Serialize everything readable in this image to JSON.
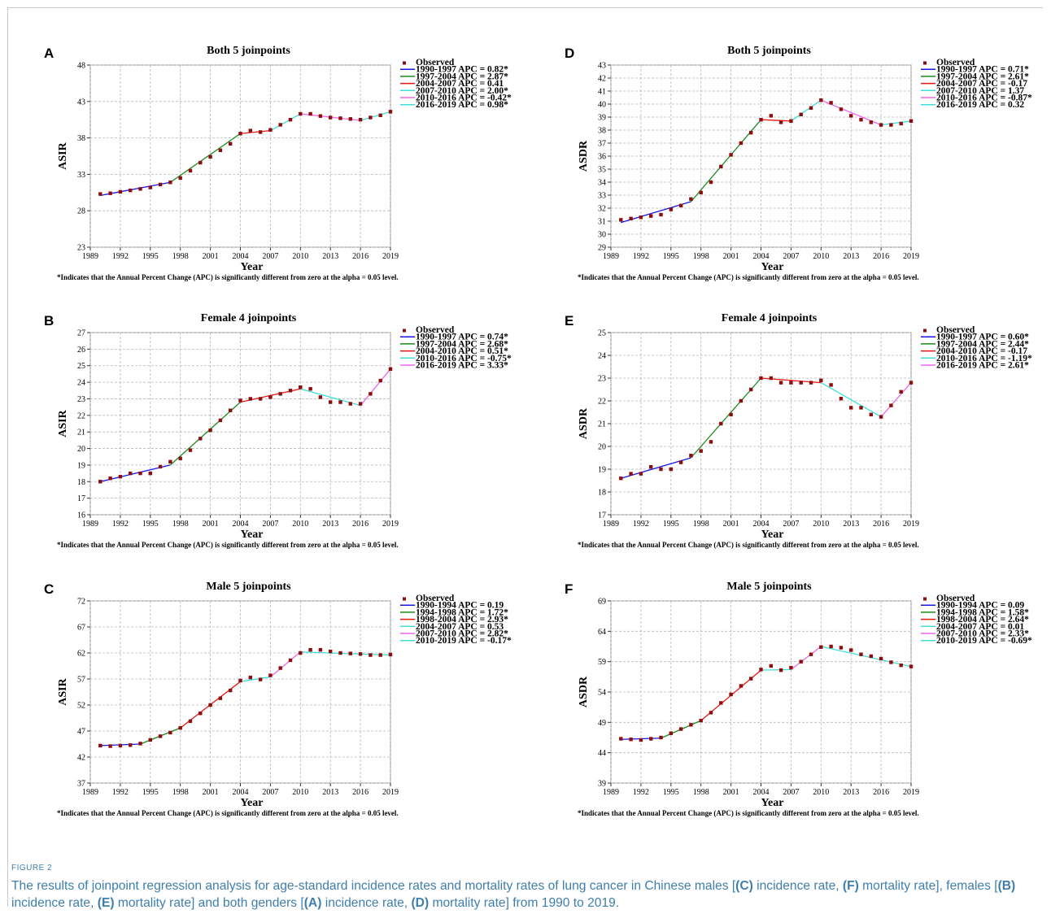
{
  "figure": {
    "label": "FIGURE 2",
    "caption_parts": [
      {
        "t": "The results of joinpoint regression analysis for age-standard incidence rates and mortality rates of lung cancer in Chinese males [",
        "b": false
      },
      {
        "t": "(C)",
        "b": true
      },
      {
        "t": " incidence rate, ",
        "b": false
      },
      {
        "t": "(F)",
        "b": true
      },
      {
        "t": " mortality rate], females [",
        "b": false
      },
      {
        "t": "(B)",
        "b": true
      },
      {
        "t": " incidence rate, ",
        "b": false
      },
      {
        "t": "(E)",
        "b": true
      },
      {
        "t": " mortality rate] and both genders [",
        "b": false
      },
      {
        "t": "(A)",
        "b": true
      },
      {
        "t": " incidence rate, ",
        "b": false
      },
      {
        "t": "(D)",
        "b": true
      },
      {
        "t": " mortality rate] from 1990 to 2019.",
        "b": false
      }
    ]
  },
  "colors": {
    "observed": "#8b0d0d",
    "blue": "#1515ee",
    "green": "#1e8a1e",
    "red": "#ee1515",
    "cyan": "#3fe0d8",
    "magenta": "#ee66ee",
    "grid": "#b8b8b8",
    "caption": "#3e7eae"
  },
  "chart_data": [
    {
      "panel": "A",
      "type": "scatter",
      "title": "Both 5 joinpoints",
      "xlabel": "Year",
      "ylabel": "ASIR",
      "xlim": [
        1989,
        2019
      ],
      "xticks": [
        1989,
        1992,
        1995,
        1998,
        2001,
        2004,
        2007,
        2010,
        2013,
        2016,
        2019
      ],
      "ylim": [
        23,
        48
      ],
      "yticks": [
        23,
        28,
        33,
        38,
        43,
        48
      ],
      "footnote": "*Indicates that the Annual Percent Change (APC) is significantly different from zero at the alpha = 0.05 level.",
      "legend_observed": "Observed",
      "observed": {
        "x": [
          1990,
          1991,
          1992,
          1993,
          1994,
          1995,
          1996,
          1997,
          1998,
          1999,
          2000,
          2001,
          2002,
          2003,
          2004,
          2005,
          2006,
          2007,
          2008,
          2009,
          2010,
          2011,
          2012,
          2013,
          2014,
          2015,
          2016,
          2017,
          2018,
          2019
        ],
        "y": [
          30.3,
          30.4,
          30.6,
          30.8,
          31.0,
          31.2,
          31.6,
          31.9,
          32.5,
          33.5,
          34.6,
          35.4,
          36.3,
          37.2,
          38.6,
          39.0,
          38.8,
          39.1,
          39.8,
          40.5,
          41.3,
          41.3,
          41.0,
          40.8,
          40.7,
          40.6,
          40.5,
          40.8,
          41.1,
          41.6
        ]
      },
      "segments": [
        {
          "label": "1990-1997 APC = 0.82*",
          "color": "blue",
          "x": [
            1990,
            1997
          ],
          "y": [
            30.1,
            31.9
          ]
        },
        {
          "label": "1997-2004 APC = 2.87*",
          "color": "green",
          "x": [
            1997,
            2004
          ],
          "y": [
            31.9,
            38.6
          ]
        },
        {
          "label": "2004-2007 APC = 0.41",
          "color": "red",
          "x": [
            2004,
            2007
          ],
          "y": [
            38.6,
            39.0
          ]
        },
        {
          "label": "2007-2010 APC = 2.00*",
          "color": "cyan",
          "x": [
            2007,
            2010
          ],
          "y": [
            39.0,
            41.3
          ]
        },
        {
          "label": "2010-2016 APC = -0.42*",
          "color": "magenta",
          "x": [
            2010,
            2016
          ],
          "y": [
            41.3,
            40.4
          ]
        },
        {
          "label": "2016-2019 APC = 0.98*",
          "color": "cyan",
          "x": [
            2016,
            2019
          ],
          "y": [
            40.4,
            41.6
          ]
        }
      ]
    },
    {
      "panel": "D",
      "type": "scatter",
      "title": "Both 5 joinpoints",
      "xlabel": "Year",
      "ylabel": "ASDR",
      "xlim": [
        1989,
        2019
      ],
      "xticks": [
        1989,
        1992,
        1995,
        1998,
        2001,
        2004,
        2007,
        2010,
        2013,
        2016,
        2019
      ],
      "ylim": [
        29,
        43
      ],
      "yticks": [
        29,
        30,
        31,
        32,
        33,
        34,
        35,
        36,
        37,
        38,
        39,
        40,
        41,
        42,
        43
      ],
      "footnote": "*Indicates that the Annual Percent Change (APC) is significantly different from zero at the alpha = 0.05 level.",
      "legend_observed": "Observed",
      "observed": {
        "x": [
          1990,
          1991,
          1992,
          1993,
          1994,
          1995,
          1996,
          1997,
          1998,
          1999,
          2000,
          2001,
          2002,
          2003,
          2004,
          2005,
          2006,
          2007,
          2008,
          2009,
          2010,
          2011,
          2012,
          2013,
          2014,
          2015,
          2016,
          2017,
          2018,
          2019
        ],
        "y": [
          31.1,
          31.2,
          31.3,
          31.4,
          31.5,
          31.9,
          32.2,
          32.7,
          33.2,
          34.0,
          35.2,
          36.1,
          37.0,
          37.8,
          38.8,
          39.1,
          38.6,
          38.7,
          39.2,
          39.7,
          40.3,
          40.1,
          39.6,
          39.1,
          38.8,
          38.6,
          38.4,
          38.4,
          38.5,
          38.7
        ]
      },
      "segments": [
        {
          "label": "1990-1997 APC = 0.71*",
          "color": "blue",
          "x": [
            1990,
            1997
          ],
          "y": [
            30.9,
            32.5
          ]
        },
        {
          "label": "1997-2004 APC = 2.61*",
          "color": "green",
          "x": [
            1997,
            2004
          ],
          "y": [
            32.5,
            38.8
          ]
        },
        {
          "label": "2004-2007 APC = -0.17",
          "color": "red",
          "x": [
            2004,
            2007
          ],
          "y": [
            38.8,
            38.7
          ]
        },
        {
          "label": "2007-2010 APC = 1.37",
          "color": "cyan",
          "x": [
            2007,
            2010
          ],
          "y": [
            38.7,
            40.3
          ]
        },
        {
          "label": "2010-2016 APC = -0.87*",
          "color": "magenta",
          "x": [
            2010,
            2016
          ],
          "y": [
            40.3,
            38.4
          ]
        },
        {
          "label": "2016-2019 APC = 0.32",
          "color": "cyan",
          "x": [
            2016,
            2019
          ],
          "y": [
            38.4,
            38.7
          ]
        }
      ]
    },
    {
      "panel": "B",
      "type": "scatter",
      "title": "Female 4 joinpoints",
      "xlabel": "Year",
      "ylabel": "ASIR",
      "xlim": [
        1989,
        2019
      ],
      "xticks": [
        1989,
        1992,
        1995,
        1998,
        2001,
        2004,
        2007,
        2010,
        2013,
        2016,
        2019
      ],
      "ylim": [
        16,
        27
      ],
      "yticks": [
        16,
        17,
        18,
        19,
        20,
        21,
        22,
        23,
        24,
        25,
        26,
        27
      ],
      "footnote": "*Indicates that the Annual Percent Change (APC) is significantly different from zero at the alpha = 0.05 level.",
      "legend_observed": "Observed",
      "observed": {
        "x": [
          1990,
          1991,
          1992,
          1993,
          1994,
          1995,
          1996,
          1997,
          1998,
          1999,
          2000,
          2001,
          2002,
          2003,
          2004,
          2005,
          2006,
          2007,
          2008,
          2009,
          2010,
          2011,
          2012,
          2013,
          2014,
          2015,
          2016,
          2017,
          2018,
          2019
        ],
        "y": [
          18.0,
          18.2,
          18.3,
          18.5,
          18.5,
          18.5,
          18.9,
          19.2,
          19.4,
          19.9,
          20.6,
          21.1,
          21.7,
          22.3,
          22.9,
          23.0,
          23.0,
          23.1,
          23.3,
          23.5,
          23.7,
          23.6,
          23.1,
          22.8,
          22.8,
          22.7,
          22.7,
          23.3,
          24.1,
          24.8
        ]
      },
      "segments": [
        {
          "label": "1990-1997 APC = 0.74*",
          "color": "blue",
          "x": [
            1990,
            1997
          ],
          "y": [
            18.0,
            19.0
          ]
        },
        {
          "label": "1997-2004 APC = 2.68*",
          "color": "green",
          "x": [
            1997,
            2004
          ],
          "y": [
            19.0,
            22.8
          ]
        },
        {
          "label": "2004-2010 APC = 0.51*",
          "color": "red",
          "x": [
            2004,
            2010
          ],
          "y": [
            22.8,
            23.6
          ]
        },
        {
          "label": "2010-2016 APC = -0.75*",
          "color": "cyan",
          "x": [
            2010,
            2016
          ],
          "y": [
            23.6,
            22.6
          ]
        },
        {
          "label": "2016-2019 APC = 3.33*",
          "color": "magenta",
          "x": [
            2016,
            2019
          ],
          "y": [
            22.6,
            24.8
          ]
        }
      ]
    },
    {
      "panel": "E",
      "type": "scatter",
      "title": "Female 4 joinpoints",
      "xlabel": "Year",
      "ylabel": "ASDR",
      "xlim": [
        1989,
        2019
      ],
      "xticks": [
        1989,
        1992,
        1995,
        1998,
        2001,
        2004,
        2007,
        2010,
        2013,
        2016,
        2019
      ],
      "ylim": [
        17,
        25
      ],
      "yticks": [
        17,
        18,
        19,
        20,
        21,
        22,
        23,
        24,
        25
      ],
      "footnote": "*Indicates that the Annual Percent Change (APC) is significantly different from zero at the alpha = 0.05 level.",
      "legend_observed": "Observed",
      "observed": {
        "x": [
          1990,
          1991,
          1992,
          1993,
          1994,
          1995,
          1996,
          1997,
          1998,
          1999,
          2000,
          2001,
          2002,
          2003,
          2004,
          2005,
          2006,
          2007,
          2008,
          2009,
          2010,
          2011,
          2012,
          2013,
          2014,
          2015,
          2016,
          2017,
          2018,
          2019
        ],
        "y": [
          18.6,
          18.8,
          18.8,
          19.1,
          19.0,
          19.0,
          19.3,
          19.6,
          19.8,
          20.2,
          21.0,
          21.4,
          22.0,
          22.5,
          23.0,
          23.0,
          22.8,
          22.8,
          22.8,
          22.8,
          22.9,
          22.7,
          22.1,
          21.7,
          21.7,
          21.4,
          21.3,
          21.8,
          22.4,
          22.8
        ]
      },
      "segments": [
        {
          "label": "1990-1997 APC = 0.60*",
          "color": "blue",
          "x": [
            1990,
            1997
          ],
          "y": [
            18.6,
            19.5
          ]
        },
        {
          "label": "1997-2004 APC = 2.44*",
          "color": "green",
          "x": [
            1997,
            2004
          ],
          "y": [
            19.5,
            23.0
          ]
        },
        {
          "label": "2004-2010 APC = -0.17",
          "color": "red",
          "x": [
            2004,
            2010
          ],
          "y": [
            23.0,
            22.8
          ]
        },
        {
          "label": "2010-2016 APC = -1.19*",
          "color": "cyan",
          "x": [
            2010,
            2016
          ],
          "y": [
            22.8,
            21.3
          ]
        },
        {
          "label": "2016-2019 APC = 2.61*",
          "color": "magenta",
          "x": [
            2016,
            2019
          ],
          "y": [
            21.3,
            22.8
          ]
        }
      ]
    },
    {
      "panel": "C",
      "type": "scatter",
      "title": "Male 5 joinpoints",
      "xlabel": "Year",
      "ylabel": "ASIR",
      "xlim": [
        1989,
        2019
      ],
      "xticks": [
        1989,
        1992,
        1995,
        1998,
        2001,
        2004,
        2007,
        2010,
        2013,
        2016,
        2019
      ],
      "ylim": [
        37,
        72
      ],
      "yticks": [
        37,
        42,
        47,
        52,
        57,
        62,
        67,
        72
      ],
      "footnote": "*Indicates that the Annual Percent Change (APC) is significantly different from zero at the alpha = 0.05 level.",
      "legend_observed": "Observed",
      "observed": {
        "x": [
          1990,
          1991,
          1992,
          1993,
          1994,
          1995,
          1996,
          1997,
          1998,
          1999,
          2000,
          2001,
          2002,
          2003,
          2004,
          2005,
          2006,
          2007,
          2008,
          2009,
          2010,
          2011,
          2012,
          2013,
          2014,
          2015,
          2016,
          2017,
          2018,
          2019
        ],
        "y": [
          44.2,
          44.1,
          44.2,
          44.3,
          44.6,
          45.3,
          46.0,
          46.7,
          47.6,
          48.9,
          50.4,
          52.0,
          53.3,
          54.8,
          56.7,
          57.3,
          56.9,
          57.7,
          59.1,
          60.6,
          62.0,
          62.6,
          62.6,
          62.3,
          62.0,
          61.9,
          61.8,
          61.6,
          61.6,
          61.7
        ]
      },
      "segments": [
        {
          "label": "1990-1994 APC = 0.19",
          "color": "blue",
          "x": [
            1990,
            1994
          ],
          "y": [
            44.2,
            44.5
          ]
        },
        {
          "label": "1994-1998 APC = 1.72*",
          "color": "green",
          "x": [
            1994,
            1998
          ],
          "y": [
            44.5,
            47.6
          ]
        },
        {
          "label": "1998-2004 APC = 2.93*",
          "color": "red",
          "x": [
            1998,
            2004
          ],
          "y": [
            47.6,
            56.5
          ]
        },
        {
          "label": "2004-2007 APC = 0.53",
          "color": "cyan",
          "x": [
            2004,
            2007
          ],
          "y": [
            56.5,
            57.4
          ]
        },
        {
          "label": "2007-2010 APC = 2.82*",
          "color": "magenta",
          "x": [
            2007,
            2010
          ],
          "y": [
            57.4,
            62.2
          ]
        },
        {
          "label": "2010-2019 APC = -0.17*",
          "color": "cyan",
          "x": [
            2010,
            2019
          ],
          "y": [
            62.2,
            61.6
          ]
        }
      ]
    },
    {
      "panel": "F",
      "type": "scatter",
      "title": "Male 5 joinpoints",
      "xlabel": "Year",
      "ylabel": "ASDR",
      "xlim": [
        1989,
        2019
      ],
      "xticks": [
        1989,
        1992,
        1995,
        1998,
        2001,
        2004,
        2007,
        2010,
        2013,
        2016,
        2019
      ],
      "ylim": [
        39,
        69
      ],
      "yticks": [
        39,
        44,
        49,
        54,
        59,
        64,
        69
      ],
      "footnote": "*Indicates that the Annual Percent Change (APC) is significantly different from zero at the alpha = 0.05 level.",
      "legend_observed": "Observed",
      "observed": {
        "x": [
          1990,
          1991,
          1992,
          1993,
          1994,
          1995,
          1996,
          1997,
          1998,
          1999,
          2000,
          2001,
          2002,
          2003,
          2004,
          2005,
          2006,
          2007,
          2008,
          2009,
          2010,
          2011,
          2012,
          2013,
          2014,
          2015,
          2016,
          2017,
          2018,
          2019
        ],
        "y": [
          46.3,
          46.2,
          46.1,
          46.3,
          46.5,
          47.2,
          47.9,
          48.6,
          49.3,
          50.6,
          52.2,
          53.6,
          55.0,
          56.2,
          57.7,
          58.3,
          57.6,
          58.0,
          59.0,
          60.2,
          61.4,
          61.5,
          61.3,
          60.9,
          60.2,
          59.9,
          59.5,
          58.9,
          58.4,
          58.2
        ]
      },
      "segments": [
        {
          "label": "1990-1994 APC = 0.09",
          "color": "blue",
          "x": [
            1990,
            1994
          ],
          "y": [
            46.2,
            46.4
          ]
        },
        {
          "label": "1994-1998 APC = 1.58*",
          "color": "green",
          "x": [
            1994,
            1998
          ],
          "y": [
            46.4,
            49.3
          ]
        },
        {
          "label": "1998-2004 APC = 2.64*",
          "color": "red",
          "x": [
            1998,
            2004
          ],
          "y": [
            49.3,
            57.6
          ]
        },
        {
          "label": "2004-2007 APC = 0.01",
          "color": "cyan",
          "x": [
            2004,
            2007
          ],
          "y": [
            57.6,
            57.7
          ]
        },
        {
          "label": "2007-2010 APC = 2.33*",
          "color": "magenta",
          "x": [
            2007,
            2010
          ],
          "y": [
            57.7,
            61.5
          ]
        },
        {
          "label": "2010-2019 APC = -0.69*",
          "color": "cyan",
          "x": [
            2010,
            2019
          ],
          "y": [
            61.5,
            58.2
          ]
        }
      ]
    }
  ]
}
